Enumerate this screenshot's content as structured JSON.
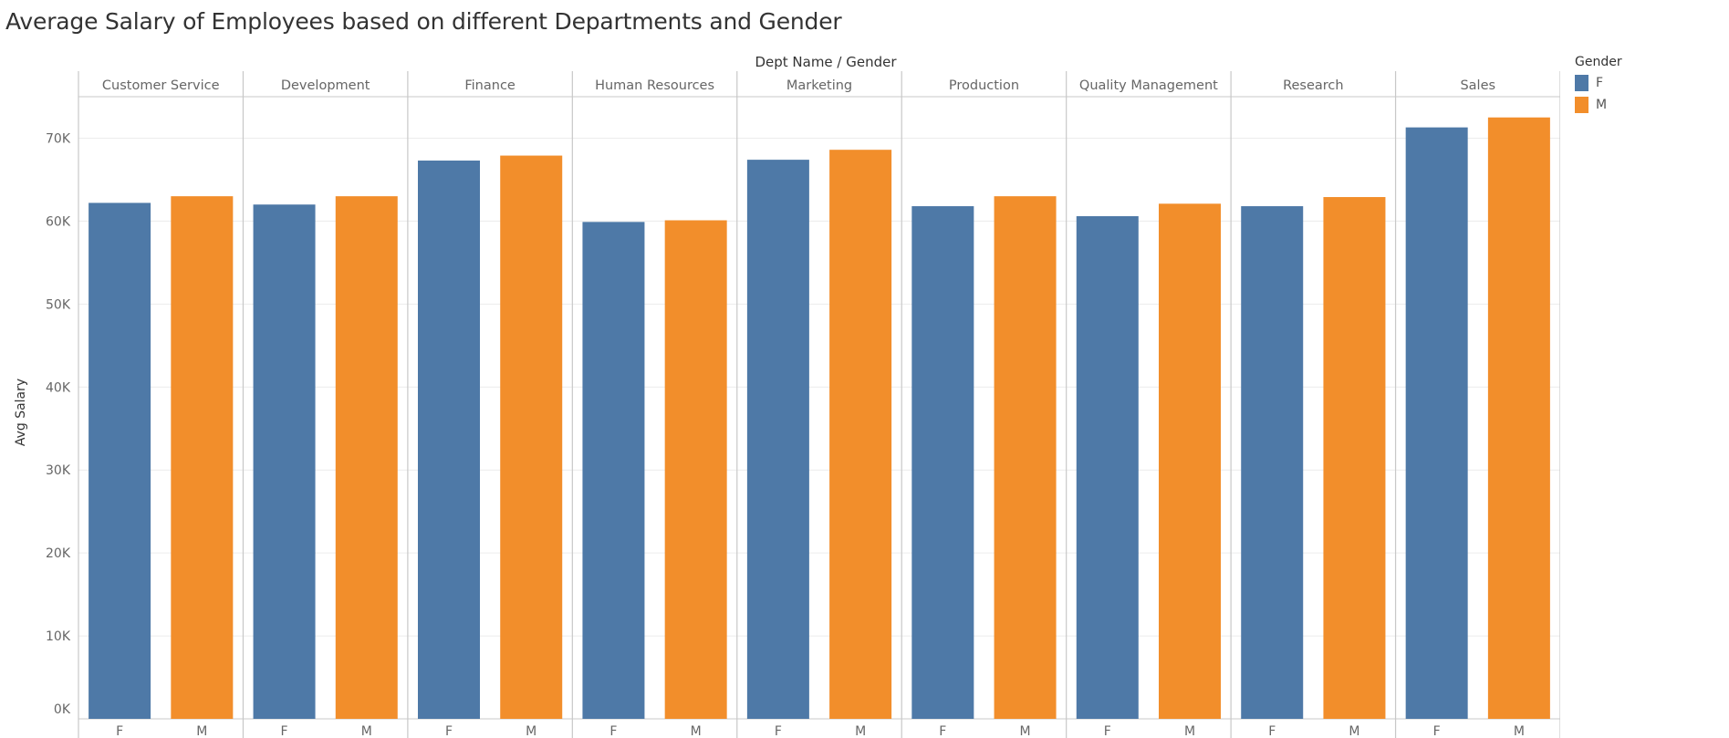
{
  "chart_data": {
    "type": "bar",
    "title": "Average Salary of Employees based on different Departments and Gender",
    "header_label": "Dept Name  /  Gender",
    "ylabel": "Avg Salary",
    "ylim": [
      0,
      75000
    ],
    "yticks": [
      0,
      10000,
      20000,
      30000,
      40000,
      50000,
      60000,
      70000
    ],
    "ytick_labels": [
      "0K",
      "10K",
      "20K",
      "30K",
      "40K",
      "50K",
      "60K",
      "70K"
    ],
    "grid": true,
    "legend_position": "top-right",
    "legend_title": "Gender",
    "categories": [
      "Customer Service",
      "Development",
      "Finance",
      "Human Resources",
      "Marketing",
      "Production",
      "Quality Management",
      "Research",
      "Sales"
    ],
    "series": [
      {
        "name": "F",
        "color": "#4e79a7",
        "values": [
          62200,
          62000,
          67300,
          59900,
          67400,
          61800,
          60600,
          61800,
          71300
        ]
      },
      {
        "name": "M",
        "color": "#f28e2b",
        "values": [
          63000,
          63000,
          67900,
          60100,
          68600,
          63000,
          62100,
          62900,
          72500
        ]
      }
    ]
  }
}
